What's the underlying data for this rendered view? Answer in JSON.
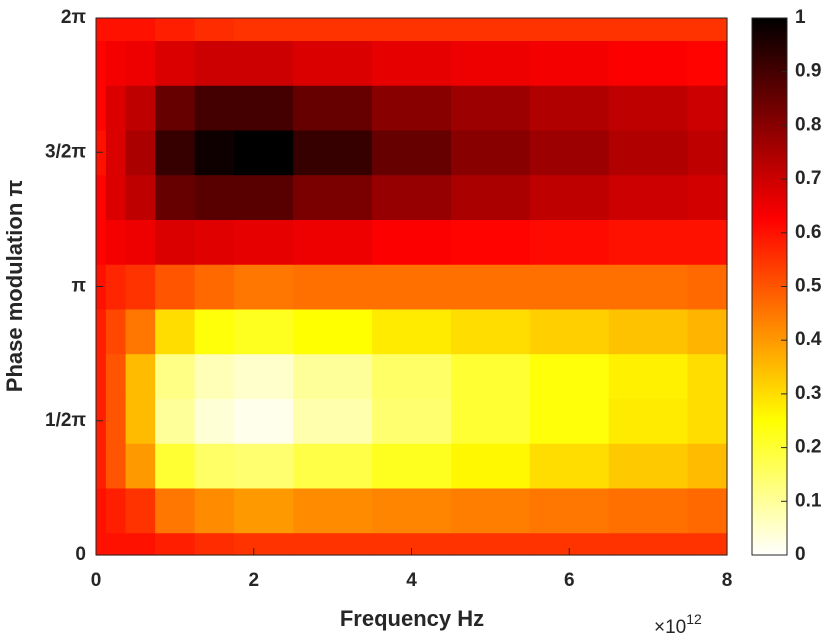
{
  "chart_data": {
    "type": "heatmap",
    "xlabel": "Frequency Hz",
    "ylabel": "Phase modulation π",
    "x_scale_base": "×10",
    "x_scale_exponent": "12",
    "x": [
      0,
      0.25,
      0.5,
      1,
      1.5,
      2,
      3,
      4,
      5,
      6,
      7,
      8
    ],
    "y": [
      0,
      0.5236,
      1.0472,
      1.5708,
      2.0944,
      2.618,
      3.1416,
      3.6652,
      4.1888,
      4.7124,
      5.236,
      5.7596,
      6.2832
    ],
    "z": [
      [
        0.6,
        0.6,
        0.6,
        0.58,
        0.56,
        0.55,
        0.55,
        0.55,
        0.55,
        0.55,
        0.55,
        0.55
      ],
      [
        0.6,
        0.58,
        0.55,
        0.45,
        0.42,
        0.4,
        0.42,
        0.43,
        0.44,
        0.45,
        0.46,
        0.47
      ],
      [
        0.58,
        0.5,
        0.4,
        0.2,
        0.15,
        0.14,
        0.18,
        0.22,
        0.26,
        0.3,
        0.33,
        0.35
      ],
      [
        0.58,
        0.5,
        0.35,
        0.1,
        0.04,
        0.02,
        0.08,
        0.14,
        0.2,
        0.24,
        0.28,
        0.3
      ],
      [
        0.58,
        0.5,
        0.35,
        0.12,
        0.07,
        0.05,
        0.1,
        0.15,
        0.2,
        0.24,
        0.27,
        0.3
      ],
      [
        0.58,
        0.52,
        0.45,
        0.3,
        0.24,
        0.22,
        0.25,
        0.28,
        0.3,
        0.32,
        0.34,
        0.36
      ],
      [
        0.6,
        0.57,
        0.55,
        0.5,
        0.47,
        0.45,
        0.46,
        0.46,
        0.46,
        0.46,
        0.46,
        0.47
      ],
      [
        0.62,
        0.64,
        0.65,
        0.68,
        0.67,
        0.66,
        0.65,
        0.63,
        0.62,
        0.61,
        0.6,
        0.6
      ],
      [
        0.62,
        0.68,
        0.72,
        0.85,
        0.87,
        0.87,
        0.82,
        0.78,
        0.75,
        0.72,
        0.7,
        0.69
      ],
      [
        0.6,
        0.68,
        0.75,
        0.92,
        0.98,
        1.0,
        0.92,
        0.85,
        0.8,
        0.77,
        0.74,
        0.72
      ],
      [
        0.62,
        0.68,
        0.72,
        0.85,
        0.9,
        0.9,
        0.85,
        0.8,
        0.77,
        0.74,
        0.72,
        0.7
      ],
      [
        0.62,
        0.64,
        0.65,
        0.68,
        0.7,
        0.7,
        0.68,
        0.66,
        0.65,
        0.64,
        0.63,
        0.62
      ],
      [
        0.6,
        0.6,
        0.6,
        0.58,
        0.56,
        0.55,
        0.55,
        0.55,
        0.55,
        0.55,
        0.55,
        0.55
      ]
    ],
    "xlim": [
      0,
      8
    ],
    "xticks": [
      0,
      2,
      4,
      6,
      8
    ],
    "ylim": [
      0,
      6.2832
    ],
    "yticks": [
      0,
      {
        "value": 1.5708,
        "label": "1/2π"
      },
      {
        "value": 3.1416,
        "label": "π"
      },
      {
        "value": 4.7124,
        "label": "3/2π"
      },
      {
        "value": 6.2832,
        "label": "2π"
      }
    ],
    "colormap": "hot_reversed",
    "clim": [
      0,
      1
    ],
    "colorbar_ticks": [
      0,
      0.1,
      0.2,
      0.3,
      0.4,
      0.5,
      0.6,
      0.7,
      0.8,
      0.9,
      1
    ]
  }
}
